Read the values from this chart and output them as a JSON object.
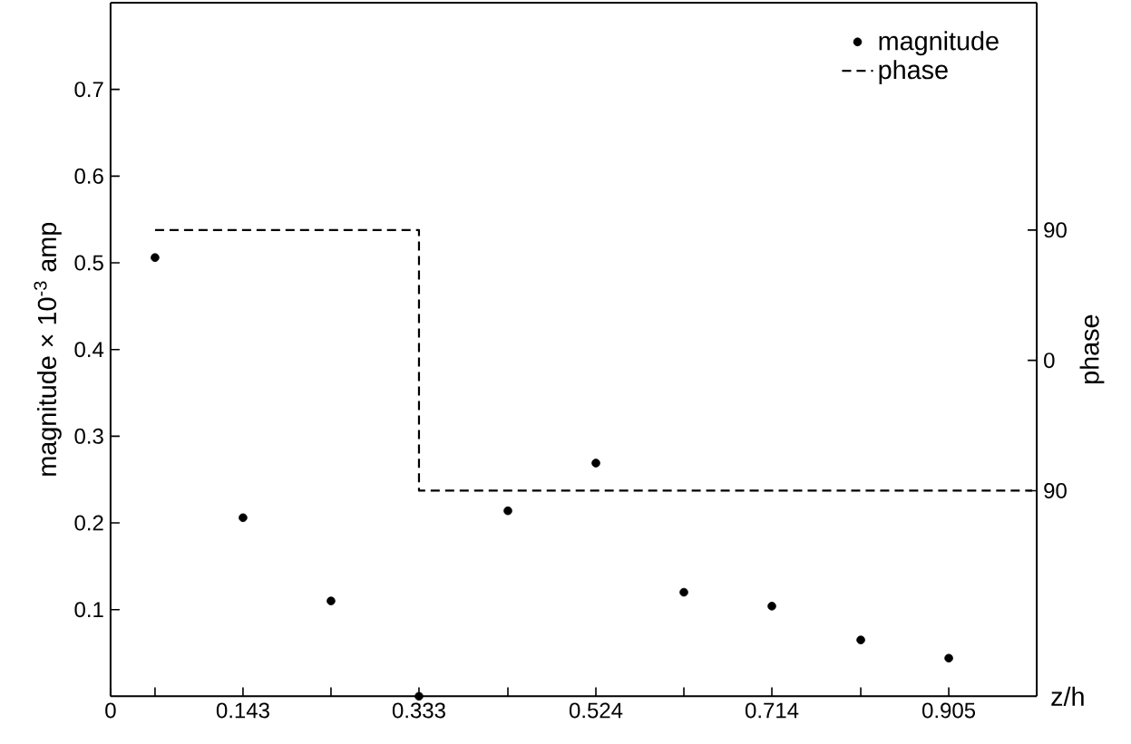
{
  "chart_data": {
    "type": "scatter",
    "xlabel": "z/h",
    "ylabel": "magnitude × 10$^{-3}$ amp",
    "y2label": "phase",
    "xlim": [
      0,
      1
    ],
    "ylim": [
      0,
      0.8
    ],
    "y2lim": [
      -232,
      247
    ],
    "xticks": [
      0,
      {
        "value": 0.048,
        "label": null
      },
      0.143,
      {
        "value": 0.238,
        "label": null
      },
      0.333,
      {
        "value": 0.429,
        "label": null
      },
      0.524,
      {
        "value": 0.619,
        "label": null
      },
      0.714,
      {
        "value": 0.81,
        "label": null
      },
      0.905
    ],
    "yticks": [
      0.1,
      0.2,
      0.3,
      0.4,
      0.5,
      0.6,
      0.7
    ],
    "y2ticks": [
      {
        "value": -90,
        "label": "90"
      },
      0,
      90
    ],
    "legend": "top right",
    "marker": "circle",
    "series": [
      {
        "name": "magnitude",
        "color": "#000000",
        "x": [
          0.048,
          0.143,
          0.238,
          0.333,
          0.429,
          0.524,
          0.619,
          0.714,
          0.81,
          0.905
        ],
        "values": [
          0.506,
          0.206,
          0.11,
          0,
          0.214,
          0.269,
          0.12,
          0.104,
          0.065,
          0.044
        ]
      },
      {
        "name": "phase",
        "type": "step",
        "axis": "y2",
        "color": "#000000",
        "marker": "none",
        "line_style": "dashed",
        "x": [
          0.048,
          0.333,
          0.995
        ],
        "values": [
          90,
          -90,
          -90
        ]
      }
    ]
  }
}
